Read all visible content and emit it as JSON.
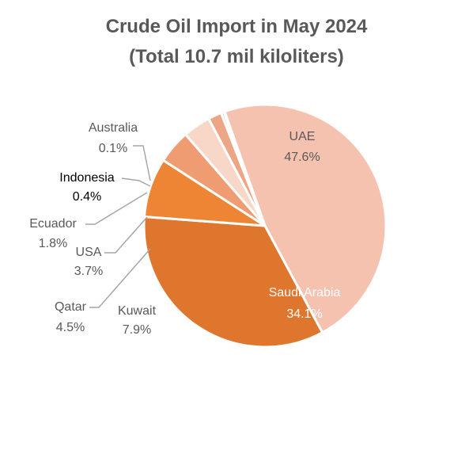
{
  "chart_data": {
    "type": "pie",
    "title": "Crude Oil Import in May 2024",
    "subtitle": "(Total 10.7 mil kiloliters)",
    "slices": [
      {
        "label": "UAE",
        "value": 47.6,
        "value_label": "47.6%",
        "color": "#F4C2AF"
      },
      {
        "label": "Saudi Arabia",
        "value": 34.1,
        "value_label": "34.1%",
        "color": "#DE762E"
      },
      {
        "label": "Kuwait",
        "value": 7.9,
        "value_label": "7.9%",
        "color": "#EE8534"
      },
      {
        "label": "Qatar",
        "value": 4.5,
        "value_label": "4.5%",
        "color": "#F09C73"
      },
      {
        "label": "USA",
        "value": 3.7,
        "value_label": "3.7%",
        "color": "#F8D6C8"
      },
      {
        "label": "Ecuador",
        "value": 1.8,
        "value_label": "1.8%",
        "color": "#ECA585"
      },
      {
        "label": "Indonesia",
        "value": 0.4,
        "value_label": "0.4%",
        "color": "#F6CDBC"
      },
      {
        "label": "Australia",
        "value": 0.1,
        "value_label": "0.1%",
        "color": "#F4C2AF"
      }
    ],
    "label_colors": {
      "inside": "#ffffff",
      "inside_light": "#595959",
      "outside": "#595959",
      "indonesia": "#000000"
    },
    "leader_line_color": "#A6A6A6"
  }
}
